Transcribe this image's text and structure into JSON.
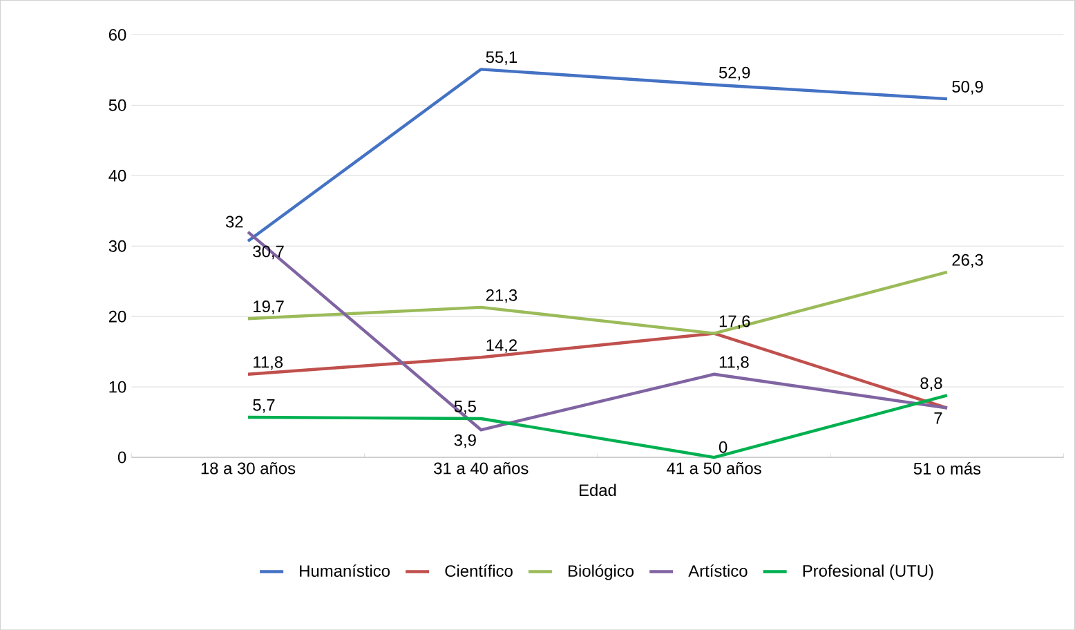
{
  "chart_data": {
    "type": "line",
    "xlabel": "Edad",
    "categories": [
      "18 a 30 años",
      "31 a 40 años",
      "41 a 50 años",
      "51 o más"
    ],
    "series": [
      {
        "name": "Humanístico",
        "color": "#4472c4",
        "values": [
          30.7,
          55.1,
          52.9,
          50.9
        ],
        "value_labels": [
          "30,7",
          "55,1",
          "52,9",
          "50,9"
        ]
      },
      {
        "name": "Científico",
        "color": "#c0504d",
        "values": [
          11.8,
          14.2,
          17.6,
          7
        ],
        "value_labels": [
          "11,8",
          "14,2",
          "17,6",
          null
        ]
      },
      {
        "name": "Biológico",
        "color": "#9bbb59",
        "values": [
          19.7,
          21.3,
          17.6,
          26.3
        ],
        "value_labels": [
          "19,7",
          "21,3",
          null,
          "26,3"
        ]
      },
      {
        "name": "Artístico",
        "color": "#8064a2",
        "values": [
          32,
          3.9,
          11.8,
          7
        ],
        "value_labels": [
          "32",
          "3,9",
          "11,8",
          "7"
        ]
      },
      {
        "name": "Profesional (UTU)",
        "color": "#00b050",
        "values": [
          5.7,
          5.5,
          0,
          8.8
        ],
        "value_labels": [
          "5,7",
          "5,5",
          "0",
          "8,8"
        ]
      }
    ],
    "ylim": [
      0,
      60
    ],
    "yticks": [
      0,
      10,
      20,
      30,
      40,
      50,
      60
    ],
    "grid": "y",
    "legend": "bottom",
    "marker": "none",
    "line_style": "solid"
  }
}
